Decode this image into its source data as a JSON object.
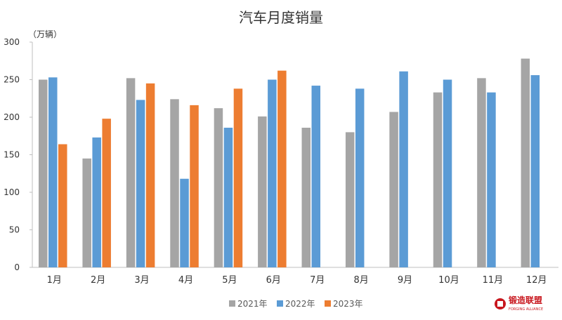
{
  "chart_data": {
    "type": "bar",
    "title": "汽车月度销量",
    "ylabel": "（万辆）",
    "xlabel": "",
    "categories": [
      "1月",
      "2月",
      "3月",
      "4月",
      "5月",
      "6月",
      "7月",
      "8月",
      "9月",
      "10月",
      "11月",
      "12月"
    ],
    "series": [
      {
        "name": "2021年",
        "color": "#a5a5a5",
        "values": [
          250,
          145,
          252,
          224,
          212,
          201,
          186,
          180,
          207,
          233,
          252,
          278
        ]
      },
      {
        "name": "2022年",
        "color": "#5b9bd5",
        "values": [
          253,
          173,
          223,
          118,
          186,
          250,
          242,
          238,
          261,
          250,
          233,
          256
        ]
      },
      {
        "name": "2023年",
        "color": "#ed7d31",
        "values": [
          164,
          198,
          245,
          216,
          238,
          262,
          null,
          null,
          null,
          null,
          null,
          null
        ]
      }
    ],
    "ylim": [
      0,
      300
    ],
    "yticks": [
      0,
      50,
      100,
      150,
      200,
      250,
      300
    ],
    "grid": false,
    "legend_position": "bottom"
  },
  "watermark": {
    "brand": "锻造联盟",
    "tagline": "FORGING ALLIANCE"
  }
}
